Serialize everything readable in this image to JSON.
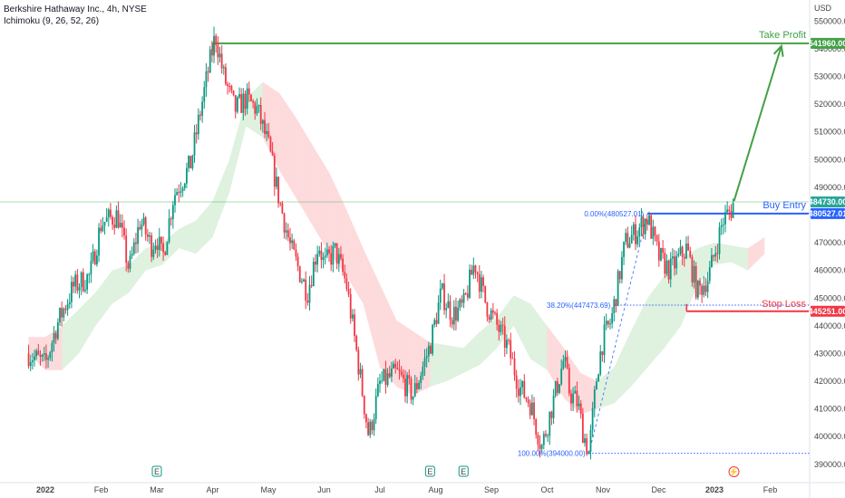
{
  "header": {
    "title": "Berkshire Hathaway Inc., 4h, NYSE",
    "indicator": "Ichimoku (9, 26, 52, 26)",
    "currency": "USD"
  },
  "chart_data": {
    "type": "candlestick",
    "symbol": "Berkshire Hathaway Inc.",
    "interval": "4h",
    "exchange": "NYSE",
    "ylim": [
      387000,
      555000
    ],
    "y_ticks": [
      390000,
      400000,
      410000,
      420000,
      430000,
      440000,
      450000,
      460000,
      470000,
      480000,
      490000,
      500000,
      510000,
      520000,
      530000,
      540000,
      550000
    ],
    "y_tick_labels": [
      "390000.00",
      "400000.00",
      "410000.00",
      "420000.00",
      "430000.00",
      "440000.00",
      "450000.00",
      "460000.00",
      "470000.00",
      "480000.00",
      "490000.00",
      "500000.00",
      "510000.00",
      "520000.00",
      "530000.00",
      "540000.00",
      "550000.00"
    ],
    "x_ticks": [
      "2022",
      "Feb",
      "Mar",
      "Apr",
      "May",
      "Jun",
      "Jul",
      "Aug",
      "Sep",
      "Oct",
      "Nov",
      "Dec",
      "2023",
      "Feb"
    ],
    "x_tick_month_index": [
      0,
      1,
      2,
      3,
      4,
      5,
      6,
      7,
      8,
      9,
      10,
      11,
      12,
      13
    ],
    "earnings_markers": [
      {
        "label": "E",
        "month": 2.0
      },
      {
        "label": "E",
        "month": 6.9
      },
      {
        "label": "E",
        "month": 7.5
      }
    ],
    "dividend_marker": {
      "label": "⚡",
      "month": 12.35
    },
    "price_path": [
      [
        -0.3,
        430000
      ],
      [
        0.0,
        426000
      ],
      [
        0.2,
        440000
      ],
      [
        0.5,
        454000
      ],
      [
        0.8,
        458000
      ],
      [
        1.0,
        477000
      ],
      [
        1.3,
        480000
      ],
      [
        1.5,
        460000
      ],
      [
        1.7,
        478000
      ],
      [
        1.9,
        469000
      ],
      [
        2.0,
        472000
      ],
      [
        2.1,
        464000
      ],
      [
        2.3,
        487000
      ],
      [
        2.6,
        498000
      ],
      [
        2.9,
        530000
      ],
      [
        3.05,
        545000
      ],
      [
        3.2,
        530000
      ],
      [
        3.4,
        518000
      ],
      [
        3.6,
        522000
      ],
      [
        3.8,
        518000
      ],
      [
        4.0,
        505000
      ],
      [
        4.2,
        485000
      ],
      [
        4.4,
        468000
      ],
      [
        4.7,
        452000
      ],
      [
        4.9,
        470000
      ],
      [
        5.0,
        462000
      ],
      [
        5.2,
        467000
      ],
      [
        5.4,
        455000
      ],
      [
        5.6,
        428000
      ],
      [
        5.8,
        400000
      ],
      [
        6.0,
        419000
      ],
      [
        6.3,
        423000
      ],
      [
        6.6,
        415000
      ],
      [
        6.9,
        433000
      ],
      [
        7.1,
        452000
      ],
      [
        7.3,
        444000
      ],
      [
        7.5,
        447000
      ],
      [
        7.7,
        463000
      ],
      [
        7.9,
        448000
      ],
      [
        8.1,
        440000
      ],
      [
        8.3,
        432000
      ],
      [
        8.5,
        418000
      ],
      [
        8.7,
        412000
      ],
      [
        8.9,
        396000
      ],
      [
        9.1,
        412000
      ],
      [
        9.3,
        428000
      ],
      [
        9.4,
        416000
      ],
      [
        9.55,
        412000
      ],
      [
        9.65,
        401000
      ],
      [
        9.75,
        394000
      ],
      [
        9.9,
        424000
      ],
      [
        10.0,
        435000
      ],
      [
        10.15,
        442000
      ],
      [
        10.4,
        470000
      ],
      [
        10.6,
        474000
      ],
      [
        10.8,
        479000
      ],
      [
        11.0,
        465000
      ],
      [
        11.2,
        460000
      ],
      [
        11.5,
        468000
      ],
      [
        11.7,
        452000
      ],
      [
        11.9,
        458000
      ],
      [
        12.0,
        466000
      ],
      [
        12.15,
        478000
      ],
      [
        12.3,
        482000
      ],
      [
        12.35,
        485000
      ]
    ],
    "ichimoku_cloud": {
      "upper": [
        [
          -0.3,
          436000
        ],
        [
          0.0,
          436000
        ],
        [
          0.3,
          440000
        ],
        [
          0.6,
          446000
        ],
        [
          0.9,
          452000
        ],
        [
          1.2,
          460000
        ],
        [
          1.5,
          462000
        ],
        [
          1.8,
          468000
        ],
        [
          2.1,
          470000
        ],
        [
          2.4,
          475000
        ],
        [
          2.7,
          478000
        ],
        [
          3.0,
          485000
        ],
        [
          3.3,
          500000
        ],
        [
          3.6,
          522000
        ],
        [
          3.9,
          528000
        ],
        [
          4.2,
          524000
        ],
        [
          4.5,
          515000
        ],
        [
          4.8,
          505000
        ],
        [
          5.1,
          495000
        ],
        [
          5.4,
          482000
        ],
        [
          5.7,
          468000
        ],
        [
          6.0,
          455000
        ],
        [
          6.3,
          442000
        ],
        [
          6.6,
          438000
        ],
        [
          6.9,
          434000
        ],
        [
          7.2,
          433000
        ],
        [
          7.5,
          432000
        ],
        [
          7.8,
          438000
        ],
        [
          8.1,
          443000
        ],
        [
          8.4,
          451000
        ],
        [
          8.7,
          448000
        ],
        [
          9.0,
          440000
        ],
        [
          9.3,
          432000
        ],
        [
          9.6,
          423000
        ],
        [
          9.9,
          420000
        ],
        [
          10.2,
          425000
        ],
        [
          10.5,
          438000
        ],
        [
          10.8,
          450000
        ],
        [
          11.1,
          458000
        ],
        [
          11.4,
          464000
        ],
        [
          11.7,
          468000
        ],
        [
          12.0,
          470000
        ],
        [
          12.3,
          469000
        ],
        [
          12.6,
          468000
        ],
        [
          12.9,
          472000
        ]
      ],
      "lower": [
        [
          -0.3,
          430000
        ],
        [
          0.0,
          424000
        ],
        [
          0.3,
          424000
        ],
        [
          0.6,
          430000
        ],
        [
          0.9,
          440000
        ],
        [
          1.2,
          448000
        ],
        [
          1.5,
          452000
        ],
        [
          1.8,
          460000
        ],
        [
          2.1,
          462000
        ],
        [
          2.4,
          468000
        ],
        [
          2.7,
          466000
        ],
        [
          3.0,
          472000
        ],
        [
          3.3,
          488000
        ],
        [
          3.6,
          512000
        ],
        [
          3.9,
          508000
        ],
        [
          4.2,
          496000
        ],
        [
          4.5,
          486000
        ],
        [
          4.8,
          476000
        ],
        [
          5.1,
          466000
        ],
        [
          5.4,
          458000
        ],
        [
          5.7,
          448000
        ],
        [
          6.0,
          425000
        ],
        [
          6.3,
          418000
        ],
        [
          6.6,
          415000
        ],
        [
          6.9,
          418000
        ],
        [
          7.2,
          420000
        ],
        [
          7.5,
          423000
        ],
        [
          7.8,
          426000
        ],
        [
          8.1,
          432000
        ],
        [
          8.4,
          440000
        ],
        [
          8.7,
          428000
        ],
        [
          9.0,
          424000
        ],
        [
          9.3,
          414000
        ],
        [
          9.6,
          408000
        ],
        [
          9.9,
          410000
        ],
        [
          10.2,
          412000
        ],
        [
          10.5,
          418000
        ],
        [
          10.8,
          425000
        ],
        [
          11.1,
          432000
        ],
        [
          11.4,
          440000
        ],
        [
          11.7,
          455000
        ],
        [
          12.0,
          462000
        ],
        [
          12.3,
          463000
        ],
        [
          12.6,
          460000
        ],
        [
          12.9,
          466000
        ]
      ]
    },
    "levels": {
      "current_price": {
        "value": 484730,
        "label": "484730.00"
      },
      "take_profit": {
        "value": 541960,
        "label": "541960.00",
        "text": "Take Profit",
        "from_month": 3.0
      },
      "buy_entry": {
        "value": 480527,
        "label": "480527.01",
        "text": "Buy Entry",
        "from_month": 10.8
      },
      "stop_loss": {
        "value": 445251,
        "label": "445251.00",
        "text": "Stop Loss",
        "from_month": 11.5
      }
    },
    "fibonacci": [
      {
        "label": "0.00%(480527.01)",
        "value": 480527,
        "from_month": 10.8
      },
      {
        "label": "38.20%(447473.69)",
        "value": 447473.69,
        "from_month": 10.2
      },
      {
        "label": "100.00%(394000.00)",
        "value": 394000,
        "from_month": 9.75
      }
    ],
    "projection_arrow": {
      "from": [
        12.35,
        485000
      ],
      "to": [
        13.2,
        541000
      ]
    }
  }
}
